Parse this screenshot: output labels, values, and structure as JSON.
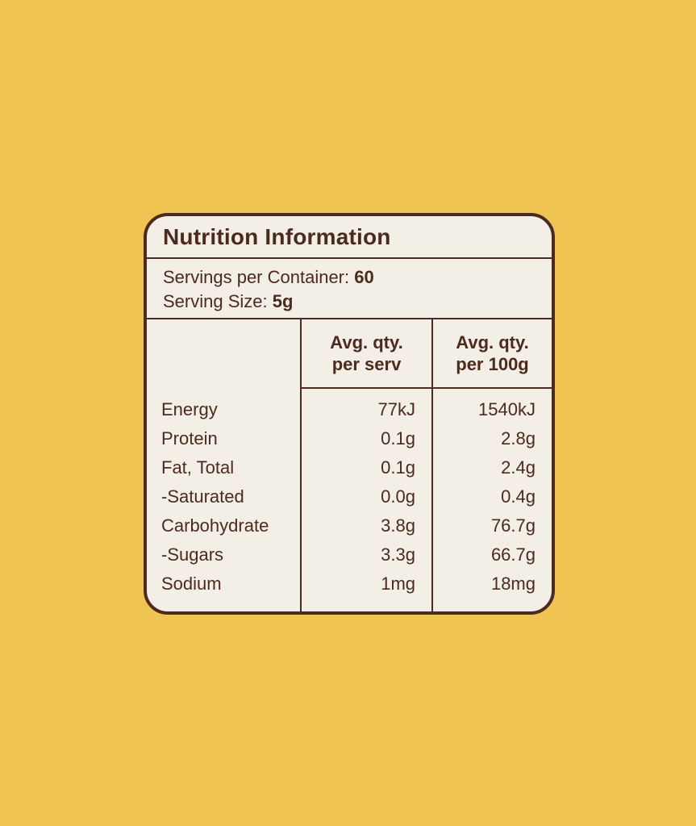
{
  "page": {
    "background_color": "#F0C452"
  },
  "panel": {
    "background_color": "#F3EEE6",
    "border_color": "#4A2B1E",
    "text_color": "#4A2B1E",
    "title": "Nutrition Information",
    "servings": {
      "per_container_label": "Servings per Container: ",
      "per_container_value": "60",
      "serving_size_label": "Serving Size: ",
      "serving_size_value": "5g"
    },
    "table": {
      "columns": [
        {
          "line1": "Avg. qty.",
          "line2": "per serv"
        },
        {
          "line1": "Avg. qty.",
          "line2": "per 100g"
        }
      ],
      "rows": [
        {
          "label": "Energy",
          "per_serv": "77kJ",
          "per_100g": "1540kJ"
        },
        {
          "label": "Protein",
          "per_serv": "0.1g",
          "per_100g": "2.8g"
        },
        {
          "label": "Fat, Total",
          "per_serv": "0.1g",
          "per_100g": "2.4g"
        },
        {
          "label": "-Saturated",
          "per_serv": "0.0g",
          "per_100g": "0.4g"
        },
        {
          "label": "Carbohydrate",
          "per_serv": "3.8g",
          "per_100g": "76.7g"
        },
        {
          "label": "-Sugars",
          "per_serv": "3.3g",
          "per_100g": "66.7g"
        },
        {
          "label": "Sodium",
          "per_serv": "1mg",
          "per_100g": "18mg"
        }
      ]
    }
  }
}
